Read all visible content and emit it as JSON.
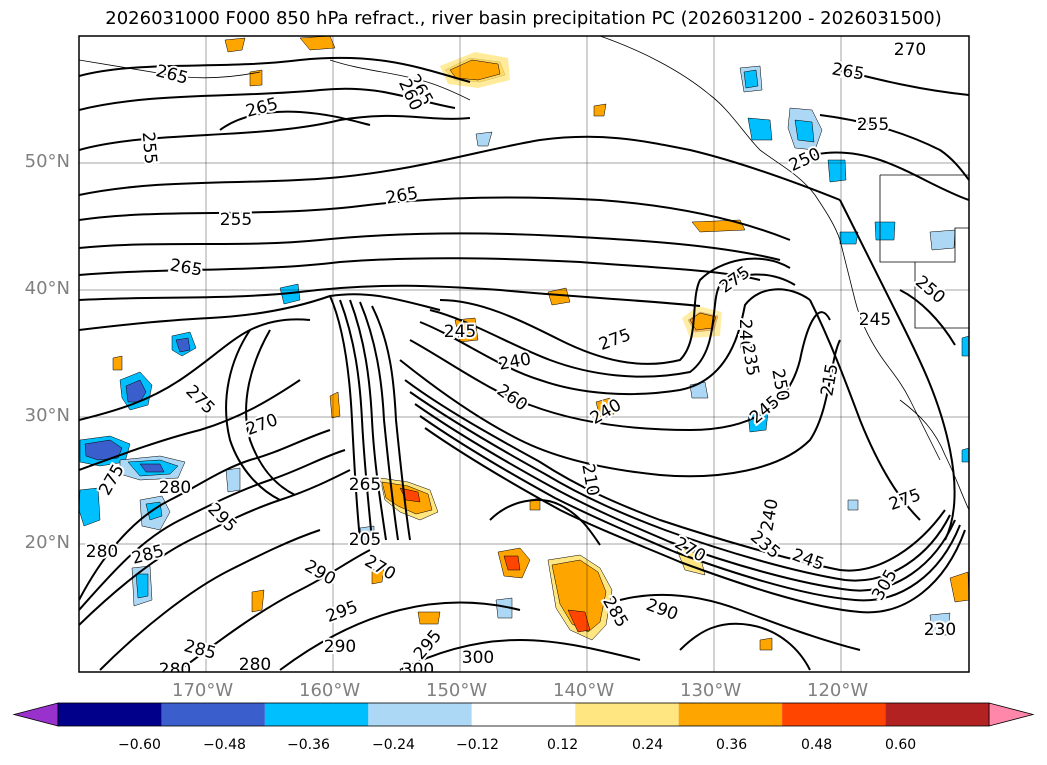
{
  "title": "2026031000 F000 850 hPa refract., river basin precipitation PC (2026031200 - 2026031500)",
  "map": {
    "lat_labels": [
      "50°N",
      "40°N",
      "30°N",
      "20°N"
    ],
    "lon_labels": [
      "170°W",
      "160°W",
      "150°W",
      "140°W",
      "130°W",
      "120°W"
    ],
    "contour_labels": [
      "270",
      "265",
      "265",
      "265",
      "265",
      "260",
      "255",
      "255",
      "250",
      "265",
      "255",
      "265",
      "245",
      "250",
      "245",
      "275",
      "240",
      "275",
      "260",
      "240",
      "240",
      "235",
      "250",
      "245",
      "240",
      "275",
      "270",
      "275",
      "280",
      "280",
      "285",
      "295",
      "290",
      "295",
      "290",
      "285",
      "280",
      "300",
      "295",
      "300",
      "290",
      "285",
      "245",
      "270",
      "235",
      "280",
      "305",
      "275",
      "265",
      "205",
      "270",
      "210",
      "215",
      "230"
    ]
  },
  "colorbar": {
    "ticks": [
      "−0.60",
      "−0.48",
      "−0.36",
      "−0.24",
      "−0.12",
      "0.12",
      "0.24",
      "0.36",
      "0.48",
      "0.60"
    ],
    "colors": [
      "#9932cc",
      "#00008b",
      "#3a5fcd",
      "#00bfff",
      "#add8f5",
      "#ffffff",
      "#ffe680",
      "#ffa500",
      "#ff4500",
      "#b22222",
      "#ff88aa"
    ]
  }
}
